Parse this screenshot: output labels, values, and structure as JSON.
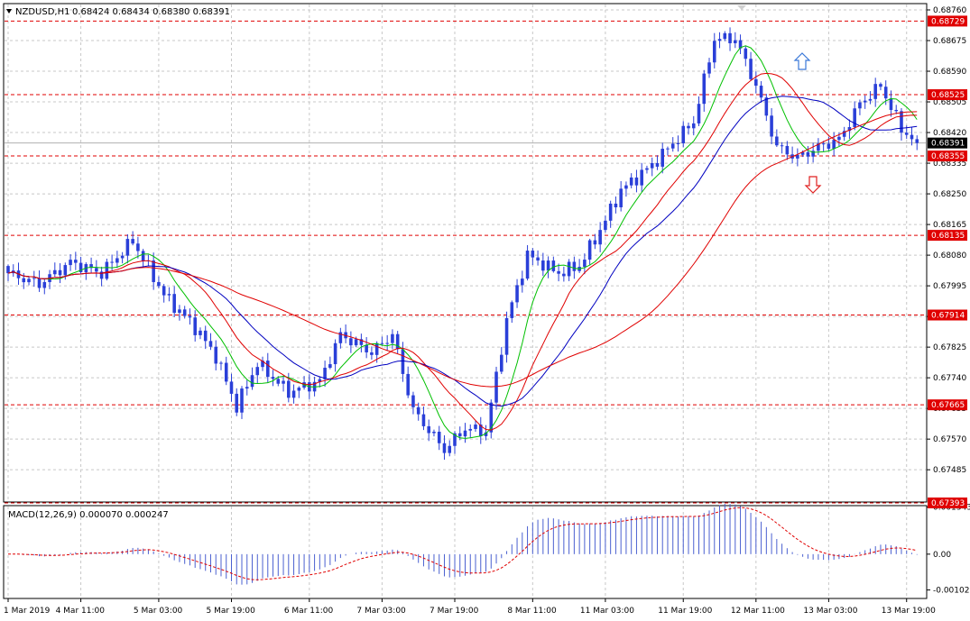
{
  "header": {
    "symbol": "NZDUSD,H1",
    "ohlc": "0.68424 0.68434 0.68380 0.68391"
  },
  "macd_header": "MACD(12,26,9) 0.000070 0.000247",
  "colors": {
    "background": "#ffffff",
    "grid": "#c8c8c8",
    "candle": "#2a3fd8",
    "ma_fast": "#00c000",
    "ma_mid": "#e00000",
    "ma_blue": "#0000c0",
    "ma_slow": "#e00000",
    "level_line": "#e00000",
    "level_badge": "#e00000",
    "current_price_badge": "#000000",
    "macd_hist": "#4a60d0",
    "macd_signal": "#e00000",
    "arrow_up": "#3a78d8",
    "arrow_down": "#e02020"
  },
  "icons": {
    "arrow_up": "up-arrow-icon",
    "arrow_down": "down-arrow-icon",
    "menu": "triangle-down-icon"
  },
  "chart_data": [
    {
      "type": "candlestick",
      "title": "NZDUSD,H1",
      "price_ticks": [
        "0.68760",
        "0.68675",
        "0.68590",
        "0.68505",
        "0.68420",
        "0.68335",
        "0.68250",
        "0.68165",
        "0.68080",
        "0.67995",
        "0.67910",
        "0.67825",
        "0.67740",
        "0.67655",
        "0.67570",
        "0.67485"
      ],
      "ylim": [
        0.67398,
        0.68775
      ],
      "current_price": "0.68391",
      "levels": [
        "0.68729",
        "0.68525",
        "0.68355",
        "0.68135",
        "0.67914",
        "0.67665",
        "0.67393"
      ],
      "x_labels": [
        "1 Mar 2019",
        "4 Mar 11:00",
        "5 Mar 03:00",
        "5 Mar 19:00",
        "6 Mar 11:00",
        "7 Mar 03:00",
        "7 Mar 19:00",
        "8 Mar 11:00",
        "11 Mar 03:00",
        "11 Mar 19:00",
        "12 Mar 11:00",
        "13 Mar 03:00",
        "13 Mar 19:00"
      ],
      "grid": true,
      "path_anchors": [
        [
          0,
          0.6803
        ],
        [
          6,
          0.68
        ],
        [
          12,
          0.6806
        ],
        [
          18,
          0.6803
        ],
        [
          24,
          0.6812
        ],
        [
          30,
          0.6797
        ],
        [
          36,
          0.6788
        ],
        [
          40,
          0.678
        ],
        [
          44,
          0.6766
        ],
        [
          48,
          0.6778
        ],
        [
          54,
          0.677
        ],
        [
          60,
          0.6773
        ],
        [
          64,
          0.6786
        ],
        [
          70,
          0.6781
        ],
        [
          74,
          0.6786
        ],
        [
          78,
          0.6765
        ],
        [
          84,
          0.6754
        ],
        [
          88,
          0.676
        ],
        [
          92,
          0.6759
        ],
        [
          96,
          0.679
        ],
        [
          100,
          0.6808
        ],
        [
          106,
          0.6803
        ],
        [
          110,
          0.6805
        ],
        [
          114,
          0.6815
        ],
        [
          118,
          0.6826
        ],
        [
          124,
          0.6833
        ],
        [
          128,
          0.6839
        ],
        [
          132,
          0.6845
        ],
        [
          136,
          0.6868
        ],
        [
          140,
          0.6868
        ],
        [
          144,
          0.6855
        ],
        [
          148,
          0.6838
        ],
        [
          152,
          0.6835
        ],
        [
          156,
          0.6838
        ],
        [
          160,
          0.684
        ],
        [
          164,
          0.685
        ],
        [
          168,
          0.6855
        ],
        [
          172,
          0.6843
        ],
        [
          175,
          0.68391
        ]
      ],
      "moving_averages": [
        {
          "color_key": "ma_fast",
          "period": 8
        },
        {
          "color_key": "ma_mid",
          "period": 16
        },
        {
          "color_key": "ma_blue",
          "period": 24
        },
        {
          "color_key": "ma_slow",
          "period": 48
        }
      ]
    },
    {
      "type": "macd",
      "title": "MACD(12,26,9)",
      "params": [
        12,
        26,
        9
      ],
      "main": 7e-05,
      "signal": 0.000247,
      "ticks": [
        "0.001343",
        "0.00",
        "-0.001023"
      ],
      "ylim": [
        -0.00124,
        0.00136
      ]
    }
  ]
}
